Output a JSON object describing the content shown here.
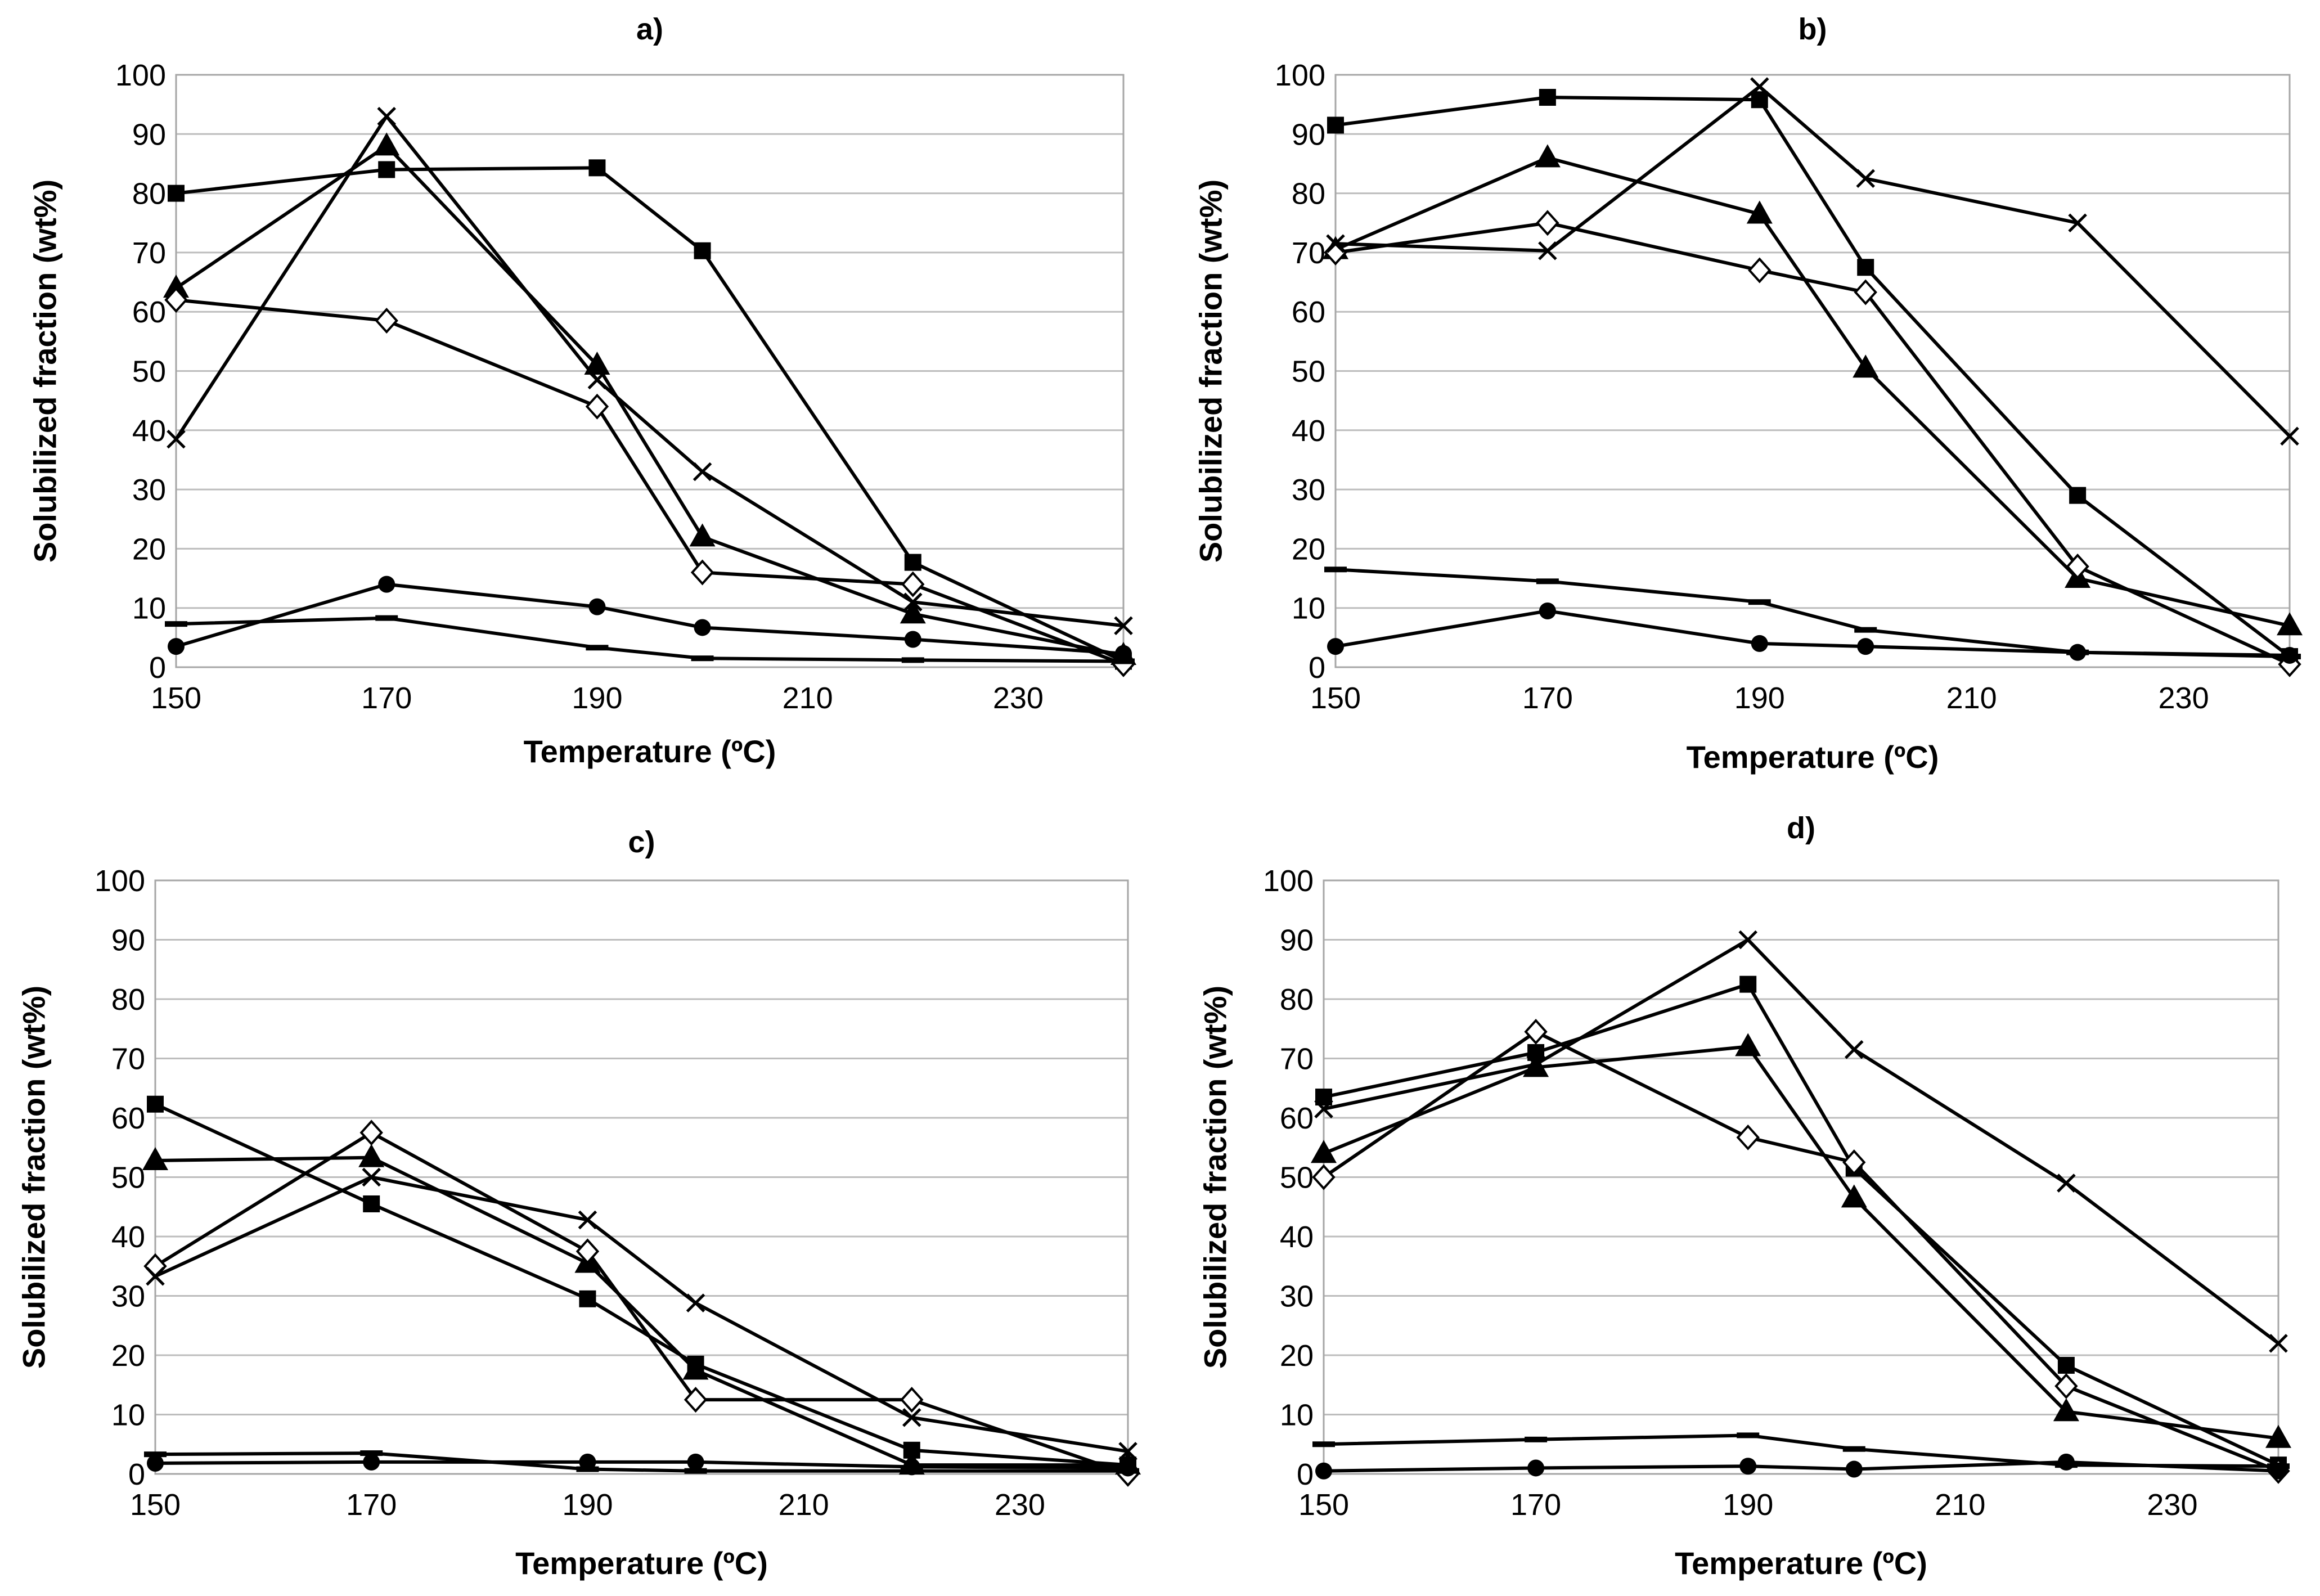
{
  "chart_data": [
    {
      "type": "line",
      "title": "a)",
      "xlabel": "Temperature (ºC)",
      "ylabel": "Solubilized fraction (wt%)",
      "x": [
        150,
        170,
        190,
        200,
        220,
        240
      ],
      "xlim": [
        150,
        240
      ],
      "ylim": [
        0,
        100
      ],
      "xticks": [
        150,
        170,
        190,
        210,
        230
      ],
      "yticks": [
        0,
        10,
        20,
        30,
        40,
        50,
        60,
        70,
        80,
        90,
        100
      ],
      "grid": "horizontal",
      "series": [
        {
          "marker": "square",
          "values": [
            80,
            84,
            84.3,
            70.3,
            17.7,
            1
          ]
        },
        {
          "marker": "triangle",
          "values": [
            64,
            88,
            51,
            22,
            9,
            2
          ]
        },
        {
          "marker": "diamond",
          "values": [
            62,
            58.5,
            44,
            16,
            14,
            0.5
          ]
        },
        {
          "marker": "cross",
          "values": [
            38.5,
            93,
            48.5,
            33,
            11,
            7
          ]
        },
        {
          "marker": "circle",
          "values": [
            3.5,
            14,
            10.2,
            6.7,
            4.7,
            2.3
          ]
        },
        {
          "marker": "dash",
          "values": [
            7.3,
            8.3,
            3.3,
            1.5,
            1.2,
            1
          ]
        }
      ]
    },
    {
      "type": "line",
      "title": "b)",
      "xlabel": "Temperature (ºC)",
      "ylabel": "Solubilized fraction (wt%)",
      "x": [
        150,
        170,
        190,
        200,
        220,
        240
      ],
      "xlim": [
        150,
        240
      ],
      "ylim": [
        0,
        100
      ],
      "xticks": [
        150,
        170,
        190,
        210,
        230
      ],
      "yticks": [
        0,
        10,
        20,
        30,
        40,
        50,
        60,
        70,
        80,
        90,
        100
      ],
      "grid": "horizontal",
      "series": [
        {
          "marker": "square",
          "values": [
            91.5,
            96.2,
            95.8,
            67.5,
            29,
            1.8
          ]
        },
        {
          "marker": "triangle",
          "values": [
            70.5,
            86,
            76.5,
            50.5,
            15,
            7
          ]
        },
        {
          "marker": "diamond",
          "values": [
            70,
            75,
            67,
            63.3,
            17,
            0.5
          ]
        },
        {
          "marker": "cross",
          "values": [
            71.5,
            70.3,
            98,
            82.5,
            75,
            39
          ]
        },
        {
          "marker": "circle",
          "values": [
            3.5,
            9.5,
            4,
            3.5,
            2.5,
            2
          ]
        },
        {
          "marker": "dash",
          "values": [
            16.5,
            14.5,
            11,
            6.3,
            2.5,
            1.8
          ]
        }
      ]
    },
    {
      "type": "line",
      "title": "c)",
      "xlabel": "Temperature (ºC)",
      "ylabel": "Solubilized fraction (wt%)",
      "x": [
        150,
        170,
        190,
        200,
        220,
        240
      ],
      "xlim": [
        150,
        240
      ],
      "ylim": [
        0,
        100
      ],
      "xticks": [
        150,
        170,
        190,
        210,
        230
      ],
      "yticks": [
        0,
        10,
        20,
        30,
        40,
        50,
        60,
        70,
        80,
        90,
        100
      ],
      "grid": "horizontal",
      "series": [
        {
          "marker": "square",
          "values": [
            62.3,
            45.5,
            29.5,
            18.5,
            4,
            1.5
          ]
        },
        {
          "marker": "triangle",
          "values": [
            52.8,
            53.3,
            35.5,
            17.5,
            1.5,
            1.5
          ]
        },
        {
          "marker": "diamond",
          "values": [
            35,
            57.5,
            37.5,
            12.5,
            12.5,
            0
          ]
        },
        {
          "marker": "cross",
          "values": [
            33.3,
            50,
            42.8,
            28.8,
            9.5,
            3.8
          ]
        },
        {
          "marker": "circle",
          "values": [
            1.8,
            2,
            2,
            2,
            1.2,
            1
          ]
        },
        {
          "marker": "dash",
          "values": [
            3.3,
            3.5,
            0.8,
            0.5,
            0.5,
            0.5
          ]
        }
      ]
    },
    {
      "type": "line",
      "title": "d)",
      "xlabel": "Temperature (ºC)",
      "ylabel": "Solubilized fraction (wt%)",
      "x": [
        150,
        170,
        190,
        200,
        220,
        240
      ],
      "xlim": [
        150,
        240
      ],
      "ylim": [
        0,
        100
      ],
      "xticks": [
        150,
        170,
        190,
        210,
        230
      ],
      "yticks": [
        0,
        10,
        20,
        30,
        40,
        50,
        60,
        70,
        80,
        90,
        100
      ],
      "grid": "horizontal",
      "series": [
        {
          "marker": "square",
          "values": [
            63.5,
            71,
            82.5,
            51.5,
            18.3,
            1.5
          ]
        },
        {
          "marker": "triangle",
          "values": [
            54,
            68.5,
            72,
            46.5,
            10.5,
            6
          ]
        },
        {
          "marker": "diamond",
          "values": [
            50,
            74.5,
            56.7,
            52.5,
            14.8,
            0.5
          ]
        },
        {
          "marker": "cross",
          "values": [
            61.5,
            69,
            90,
            71.5,
            49,
            22
          ]
        },
        {
          "marker": "circle",
          "values": [
            0.5,
            1,
            1.3,
            0.8,
            2,
            0.5
          ]
        },
        {
          "marker": "dash",
          "values": [
            5,
            5.8,
            6.5,
            4.2,
            1.5,
            1.3
          ]
        }
      ]
    }
  ]
}
